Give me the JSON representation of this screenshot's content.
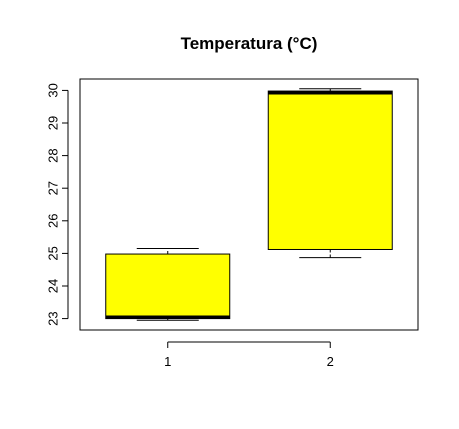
{
  "chart_data": {
    "type": "boxplot",
    "title": "Temperatura (°C)",
    "xlabel": "",
    "ylabel": "",
    "categories": [
      "1",
      "2"
    ],
    "series": [
      {
        "boxes": [
          {
            "category": "1",
            "whisker_low": 22.95,
            "q1": 23.0,
            "median": 23.05,
            "q3": 24.98,
            "whisker_high": 25.15
          },
          {
            "category": "2",
            "whisker_low": 24.87,
            "q1": 25.12,
            "median": 29.92,
            "q3": 29.98,
            "whisker_high": 30.05
          }
        ]
      }
    ],
    "ylim": [
      22.65,
      30.35
    ],
    "yticks": [
      23,
      24,
      25,
      26,
      27,
      28,
      29,
      30
    ],
    "box_fill": "#ffff00",
    "grid": false,
    "legend": "none"
  }
}
